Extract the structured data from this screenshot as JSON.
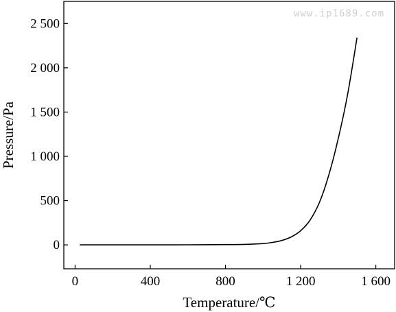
{
  "watermark": "www.ip1689.com",
  "chart_data": {
    "type": "line",
    "xlabel": "Temperature/℃",
    "ylabel": "Pressure/Pa",
    "xlim": [
      -60,
      1700
    ],
    "ylim": [
      -270,
      2750
    ],
    "xticks": [
      0,
      400,
      800,
      1200,
      1600
    ],
    "xtick_labels": [
      "0",
      "400",
      "800",
      "1 200",
      "1 600"
    ],
    "yticks": [
      0,
      500,
      1000,
      1500,
      2000,
      2500
    ],
    "ytick_labels": [
      "0",
      "500",
      "1 000",
      "1 500",
      "2 000",
      "2 500"
    ],
    "grid": false,
    "series": [
      {
        "x": [
          25,
          200,
          400,
          600,
          800,
          900,
          1000,
          1050,
          1100,
          1150,
          1200,
          1250,
          1300,
          1350,
          1400,
          1450,
          1500
        ],
        "y": [
          0,
          0,
          0.5,
          1,
          3,
          6,
          15,
          28,
          50,
          90,
          160,
          280,
          480,
          790,
          1200,
          1700,
          2340
        ]
      }
    ]
  }
}
